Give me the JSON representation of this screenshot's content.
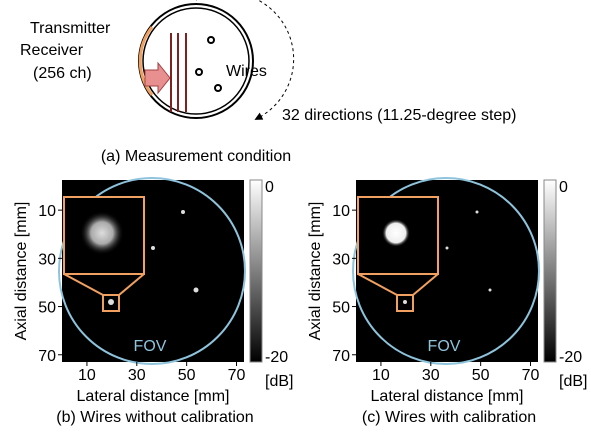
{
  "diagram": {
    "transmitter": "Transmitter",
    "receiver": "Receiver",
    "channels": "(256 ch)",
    "wires": "Wires",
    "directions": "32 directions (11.25-degree step)",
    "caption": "(a) Measurement condition"
  },
  "panels": [
    {
      "xlabel": "Lateral distance [mm]",
      "ylabel": "Axial distance [mm]",
      "caption": "(b) Wires without calibration",
      "fov": "FOV",
      "xlim": [
        0,
        73
      ],
      "ylim": [
        -2.5,
        73
      ],
      "xticks": [
        10,
        30,
        50,
        70
      ],
      "yticks": [
        10,
        30,
        50,
        70
      ],
      "clim": [
        -20,
        0
      ],
      "cticks": [
        0,
        -20
      ],
      "cunit": "[dB]"
    },
    {
      "xlabel": "Lateral distance [mm]",
      "ylabel": "Axial distance [mm]",
      "caption": "(c) Wires with calibration",
      "fov": "FOV",
      "xlim": [
        0,
        73
      ],
      "ylim": [
        -2.5,
        73
      ],
      "xticks": [
        10,
        30,
        50,
        70
      ],
      "yticks": [
        10,
        30,
        50,
        70
      ],
      "clim": [
        -20,
        0
      ],
      "cticks": [
        0,
        -20
      ],
      "cunit": "[dB]"
    }
  ]
}
